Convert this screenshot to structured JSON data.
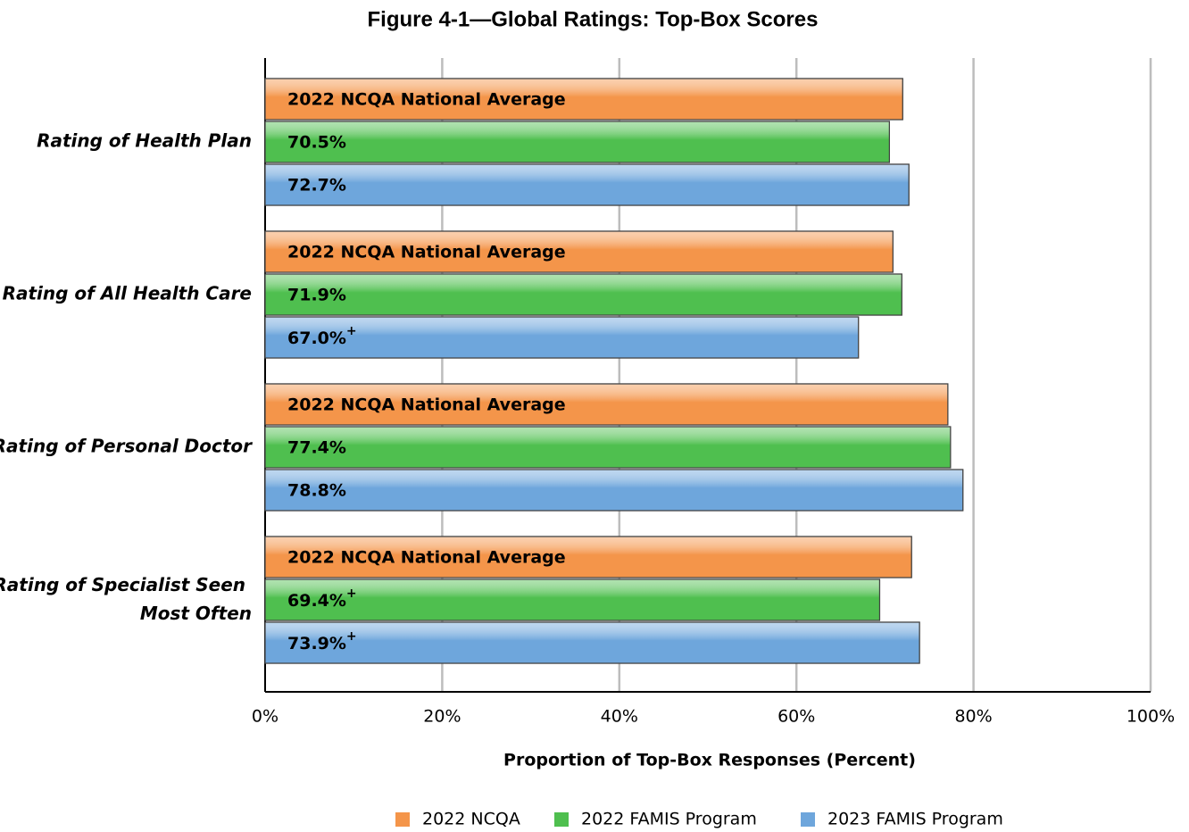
{
  "chart_data": {
    "type": "bar",
    "orientation": "horizontal",
    "title": "Figure 4-1—Global Ratings: Top-Box Scores",
    "xlabel": "Proportion of Top-Box Responses (Percent)",
    "categories": [
      "Rating of Health Plan",
      "Rating of All Health Care",
      "Rating of Personal Doctor",
      "Rating of Specialist Seen Most Often"
    ],
    "series": [
      {
        "name": "2022 NCQA",
        "color": "#f4954a",
        "values": [
          72.0,
          70.9,
          77.1,
          73.0
        ],
        "bar_label": "2022 NCQA National Average"
      },
      {
        "name": "2022 FAMIS Program",
        "color": "#4fbf4f",
        "values": [
          70.5,
          71.9,
          77.4,
          69.4
        ],
        "value_labels": [
          "70.5%",
          "71.9%",
          "77.4%",
          "69.4%+"
        ]
      },
      {
        "name": "2023 FAMIS Program",
        "color": "#6ea6dc",
        "values": [
          72.7,
          67.0,
          78.8,
          73.9
        ],
        "value_labels": [
          "72.7%",
          "67.0%+",
          "78.8%",
          "73.9%+"
        ]
      }
    ],
    "xlim": [
      0,
      100
    ],
    "xticks": [
      {
        "value": 0,
        "label": "0%"
      },
      {
        "value": 20,
        "label": "20%"
      },
      {
        "value": 40,
        "label": "40%"
      },
      {
        "value": 60,
        "label": "60%"
      },
      {
        "value": 80,
        "label": "80%"
      },
      {
        "value": 100,
        "label": "100%"
      }
    ],
    "grid": true,
    "legend": "bottom"
  }
}
